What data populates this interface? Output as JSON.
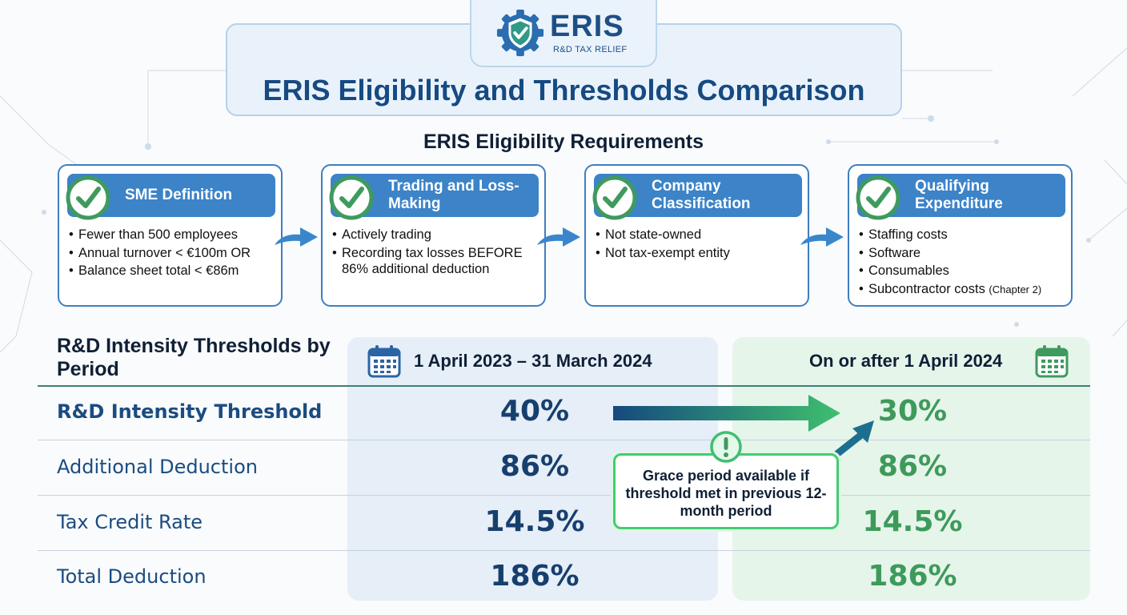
{
  "logo": {
    "wordmark": "ERIS",
    "tagline": "R&D TAX RELIEF"
  },
  "title": "ERIS Eligibility and Thresholds Comparison",
  "eligibility": {
    "heading": "ERIS Eligibility Requirements",
    "cards": [
      {
        "label": "SME Definition",
        "items": [
          "Fewer than 500 employees",
          "Annual turnover < €100m OR",
          "Balance sheet total < €86m"
        ]
      },
      {
        "label": "Trading and Loss-Making",
        "items": [
          "Actively trading",
          "Recording tax losses BEFORE 86% additional deduction"
        ]
      },
      {
        "label": "Company Classification",
        "items": [
          "Not state-owned",
          "Not tax-exempt entity"
        ]
      },
      {
        "label": "Qualifying Expenditure",
        "items": [
          "Staffing costs",
          "Software",
          "Consumables",
          "Subcontractor costs"
        ],
        "last_item_note": "(Chapter 2)"
      }
    ]
  },
  "thresholds": {
    "heading": "R&D Intensity Thresholds by Period",
    "periods": [
      "1 April 2023 – 31 March 2024",
      "On or after 1 April 2024"
    ],
    "rows": [
      {
        "label": "R&D Intensity Threshold",
        "values": [
          "40%",
          "30%"
        ]
      },
      {
        "label": "Additional Deduction",
        "values": [
          "86%",
          "86%"
        ]
      },
      {
        "label": "Tax Credit Rate",
        "values": [
          "14.5%",
          "14.5%"
        ]
      },
      {
        "label": "Total Deduction",
        "values": [
          "186%",
          "186%"
        ]
      }
    ],
    "grace_note": "Grace period available if threshold met in previous 12-month period"
  },
  "colors": {
    "navy": "#164a82",
    "card_header_blue": "#3c83c8",
    "check_green": "#3f9a5e",
    "period_a_bg": "#e6eef8",
    "period_b_bg": "#e5f5ea",
    "period_b_text": "#3e9a5b",
    "grace_border": "#45cb73"
  },
  "icons": [
    "shield-gear-logo-icon",
    "check-circle-icon",
    "arrow-right-icon",
    "calendar-icon",
    "exclamation-icon",
    "trend-arrow-icon"
  ]
}
